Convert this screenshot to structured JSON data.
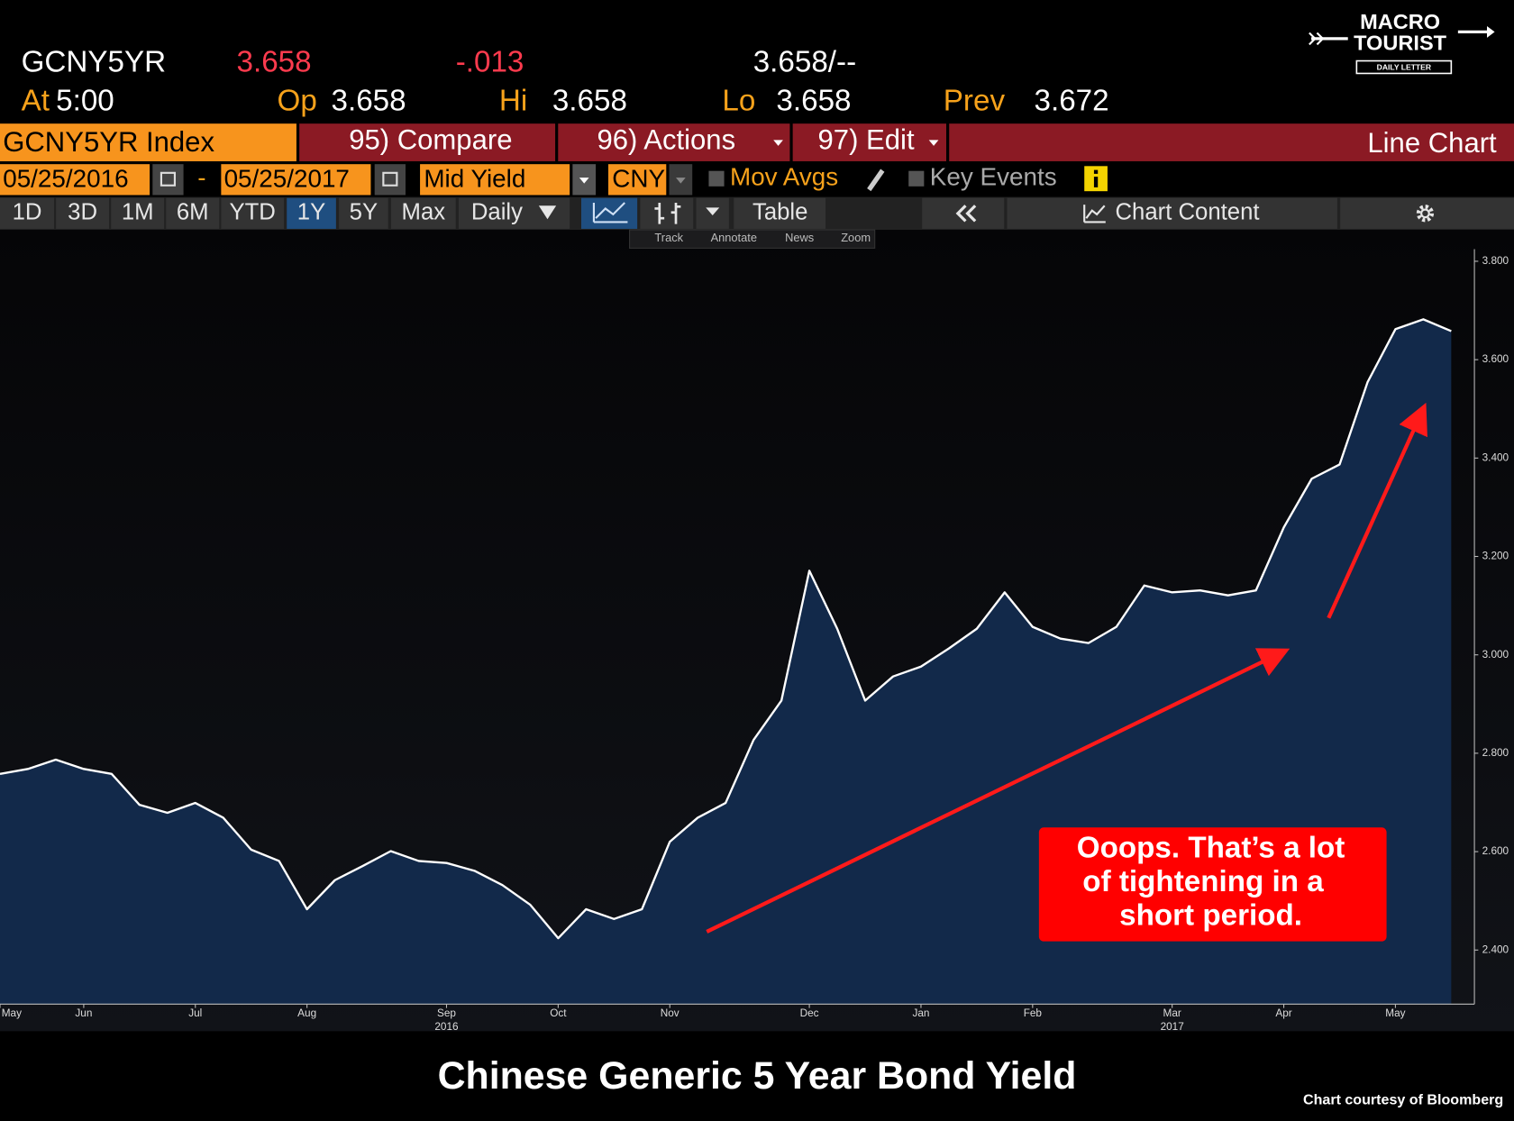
{
  "quote": {
    "ticker": "GCNY5YR",
    "last": "3.658",
    "change": "-.013",
    "bid_ask": "3.658/--",
    "at_label": "At",
    "at": "5:00",
    "open_label": "Op",
    "open": "3.658",
    "high_label": "Hi",
    "high": "3.658",
    "low_label": "Lo",
    "low": "3.658",
    "prev_label": "Prev",
    "prev": "3.672"
  },
  "logo": {
    "line1": "MACRO",
    "line2": "TOURIST",
    "tagline": "DAILY LETTER"
  },
  "toolbar": {
    "security": "GCNY5YR Index",
    "compare": "95) Compare",
    "actions": "96) Actions",
    "edit": "97) Edit",
    "chart_type": "Line Chart",
    "start_date": "05/25/2016",
    "date_separator": "-",
    "end_date": "05/25/2017",
    "field": "Mid Yield",
    "currency": "CNY",
    "mov_avgs": "Mov Avgs",
    "key_events": "Key Events",
    "periods": [
      "1D",
      "3D",
      "1M",
      "6M",
      "YTD",
      "1Y",
      "5Y",
      "Max"
    ],
    "active_period": "1Y",
    "frequency": "Daily",
    "table": "Table",
    "chart_content": "Chart Content",
    "tools": [
      "Track",
      "Annotate",
      "News",
      "Zoom"
    ]
  },
  "chart_data": {
    "type": "area",
    "title": "Chinese Generic 5 Year Bond Yield",
    "credit": "Chart courtesy of Bloomberg",
    "annotation": [
      "Ooops.  That’s a lot",
      "of tightening in a",
      "short period."
    ],
    "categories": [
      "May",
      null,
      null,
      "Jun",
      null,
      null,
      null,
      "Jul",
      null,
      null,
      null,
      "Aug",
      null,
      null,
      null,
      null,
      "Sep",
      null,
      null,
      null,
      "Oct",
      null,
      null,
      null,
      "Nov",
      null,
      null,
      null,
      null,
      "Dec",
      null,
      null,
      null,
      "Jan",
      null,
      null,
      null,
      "Feb",
      null,
      null,
      null,
      null,
      "Mar",
      null,
      null,
      null,
      "Apr",
      null,
      null,
      null,
      "May",
      null,
      null
    ],
    "category_sublabels": [
      null,
      null,
      null,
      null,
      null,
      null,
      null,
      null,
      null,
      null,
      null,
      null,
      null,
      null,
      null,
      null,
      "2016",
      null,
      null,
      null,
      null,
      null,
      null,
      null,
      null,
      null,
      null,
      null,
      null,
      null,
      null,
      null,
      null,
      null,
      null,
      null,
      null,
      null,
      null,
      null,
      null,
      null,
      "2017",
      null,
      null,
      null,
      null,
      null,
      null,
      null,
      null,
      null,
      null
    ],
    "series": [
      {
        "name": "GCNY5YR Index",
        "color": "#ffffff",
        "fill": "#12294a",
        "values": [
          2.758,
          2.768,
          2.787,
          2.768,
          2.758,
          2.695,
          2.679,
          2.699,
          2.669,
          2.604,
          2.581,
          2.483,
          2.542,
          2.571,
          2.601,
          2.581,
          2.577,
          2.561,
          2.532,
          2.492,
          2.424,
          2.483,
          2.463,
          2.483,
          2.62,
          2.669,
          2.699,
          2.827,
          2.907,
          3.171,
          3.053,
          2.907,
          2.956,
          2.976,
          3.013,
          3.053,
          3.127,
          3.057,
          3.033,
          3.024,
          3.057,
          3.141,
          3.127,
          3.131,
          3.121,
          3.131,
          3.259,
          3.358,
          3.387,
          3.554,
          3.662,
          3.682,
          3.658
        ]
      }
    ],
    "ylim": [
      2.29,
      3.86
    ],
    "yticks": [
      {
        "value": 2.4,
        "label": "2.400"
      },
      {
        "value": 2.6,
        "label": "2.600"
      },
      {
        "value": 2.8,
        "label": "2.800"
      },
      {
        "value": 3.0,
        "label": "3.000"
      },
      {
        "value": 3.2,
        "label": "3.200"
      },
      {
        "value": 3.4,
        "label": "3.400"
      },
      {
        "value": 3.6,
        "label": "3.600"
      },
      {
        "value": 3.8,
        "label": "3.800"
      }
    ],
    "y_axis_side": "right",
    "grid": false
  }
}
